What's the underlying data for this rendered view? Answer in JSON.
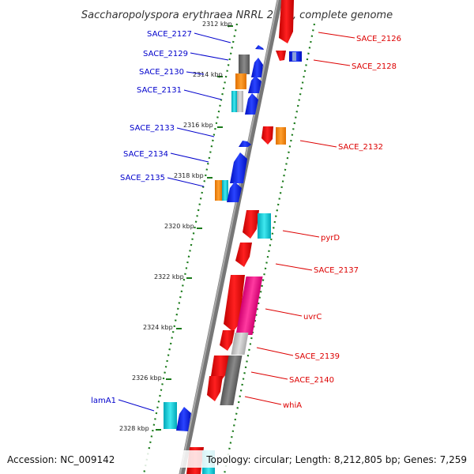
{
  "title": "Saccharopolyspora erythraea NRRL 2338, complete genome",
  "footer": {
    "accession": "Accession: NC_009142",
    "summary": "Topology: circular; Length: 8,212,805 bp; Genes: 7,259"
  },
  "colors": {
    "reverse_label": "#0000cc",
    "forward_label": "#dd0000",
    "backbone": "#888888",
    "tick": "#1a7a1a",
    "blue": "#0018e0",
    "red": "#ee0000",
    "orange": "#ff8a00",
    "cyan": "#00c8d8",
    "magenta": "#ee1188",
    "gray": "#777777",
    "lightgray": "#c0c0c0"
  },
  "kbp_ticks": [
    "2312 kbp",
    "2314 kbp",
    "2316 kbp",
    "2318 kbp",
    "2320 kbp",
    "2322 kbp",
    "2324 kbp",
    "2326 kbp",
    "2328 kbp"
  ],
  "reverse_labels": [
    "SACE_2127",
    "SACE_2129",
    "SACE_2130",
    "SACE_2131",
    "SACE_2133",
    "SACE_2134",
    "SACE_2135",
    "lamA1"
  ],
  "forward_labels": [
    "SACE_2126",
    "SACE_2128",
    "SACE_2132",
    "pyrD",
    "SACE_2137",
    "uvrC",
    "SACE_2139",
    "SACE_2140",
    "whiA"
  ]
}
